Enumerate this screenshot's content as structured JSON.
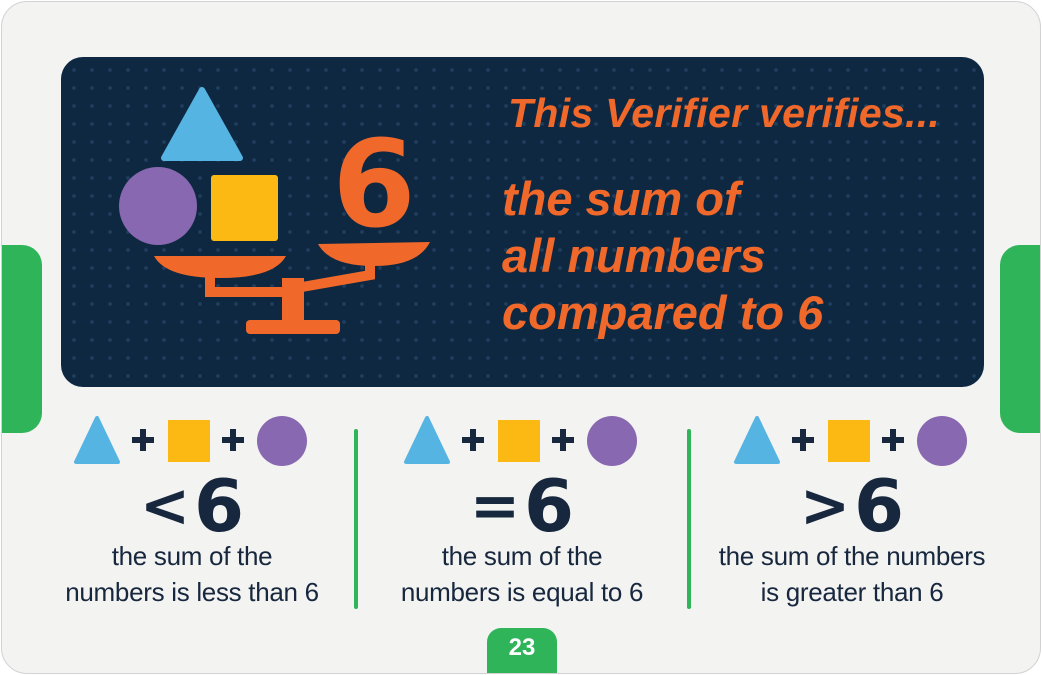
{
  "banner": {
    "title": "This Verifier verifies...",
    "subtitle_lines": [
      "the sum of",
      "all numbers",
      "compared to 6"
    ],
    "scale_number": "6"
  },
  "criteria": [
    {
      "symbol": "<",
      "number": "6",
      "lines": [
        "the sum of the",
        "numbers is less than 6"
      ]
    },
    {
      "symbol": "=",
      "number": "6",
      "lines": [
        "the sum of the",
        "numbers is equal to 6"
      ]
    },
    {
      "symbol": ">",
      "number": "6",
      "lines": [
        "the sum of the numbers",
        "is greater than 6"
      ]
    }
  ],
  "page_number": "23",
  "colors": {
    "orange": "#f0692a",
    "navy": "#0f2842",
    "green": "#2fb45a",
    "blue": "#56b4e3",
    "yellow": "#fdb913",
    "purple": "#8868b0",
    "text": "#17273d"
  }
}
